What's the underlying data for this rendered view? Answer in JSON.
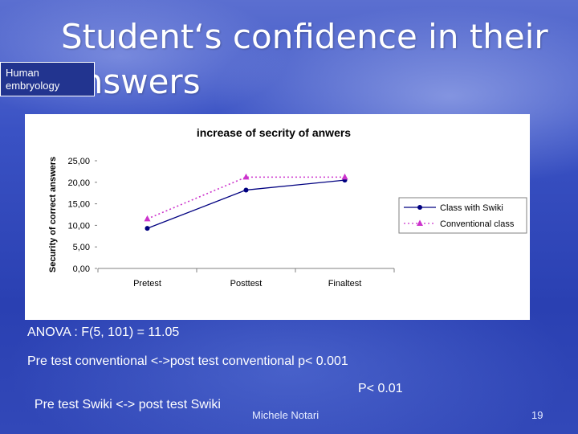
{
  "slide": {
    "title": "Student‘s confidence in their answers",
    "badge": "Human embryology",
    "author": "Michele Notari",
    "page": "19"
  },
  "notes": [
    "ANOVA : F(5, 101) = 11.05",
    "Pre test conventional <->post test conventional p< 0.001",
    "Pre test Swiki <-> post test Swiki",
    "P< 0.01"
  ],
  "chart_data": {
    "type": "line",
    "title": "increase of secrity of anwers",
    "xlabel": "",
    "ylabel": "Security of correct answers",
    "categories": [
      "Pretest",
      "Posttest",
      "Finaltest"
    ],
    "y_ticks": [
      "0,00",
      "5,00",
      "10,00",
      "15,00",
      "20,00",
      "25,00"
    ],
    "ylim": [
      0,
      25
    ],
    "grid": false,
    "legend_position": "right",
    "series": [
      {
        "name": "Class with Swiki",
        "values": [
          9.3,
          18.2,
          20.5
        ],
        "color": "#000080",
        "marker": "circle",
        "line": "solid"
      },
      {
        "name": "Conventional class",
        "values": [
          11.5,
          21.2,
          21.2
        ],
        "color": "#cc33cc",
        "marker": "triangle",
        "line": "dotted"
      }
    ]
  }
}
